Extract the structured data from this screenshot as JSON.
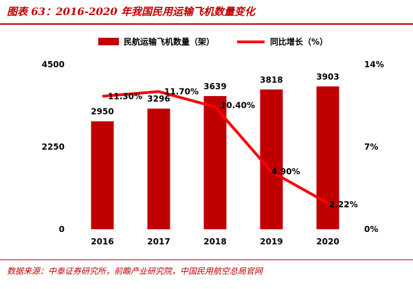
{
  "title": "图表 63：2016-2020 年我国民用运输飞机数量变化",
  "source": "数据来源：中泰证券研究所，前瞻产业研究院，中国民用航空总局官网",
  "colors": {
    "bar": "#c00000",
    "line": "#ff0000",
    "accent": "#c00000"
  },
  "chart_data": {
    "type": "bar",
    "categories": [
      "2016",
      "2017",
      "2018",
      "2019",
      "2020"
    ],
    "series": [
      {
        "name": "民航运输飞机数量（架）",
        "type": "bar",
        "axis": "left",
        "values": [
          2950,
          3296,
          3639,
          3818,
          3903
        ],
        "labels": [
          "2950",
          "3296",
          "3639",
          "3818",
          "3903"
        ]
      },
      {
        "name": "同比增长（%）",
        "type": "line",
        "axis": "right",
        "values": [
          11.3,
          11.7,
          10.4,
          4.9,
          2.22
        ],
        "labels": [
          "11.30%",
          "11.70%",
          "10.40%",
          "4.90%",
          "2.22%"
        ]
      }
    ],
    "y_left": {
      "ylim": [
        0,
        4500
      ],
      "ticks": [
        "0",
        "2250",
        "4500"
      ],
      "tick_values": [
        0,
        2250,
        4500
      ]
    },
    "y_right": {
      "ylim": [
        0,
        14
      ],
      "ticks": [
        "0%",
        "7%",
        "14%"
      ],
      "tick_values": [
        0,
        7,
        14
      ]
    },
    "legend_position": "top",
    "grid": false
  }
}
